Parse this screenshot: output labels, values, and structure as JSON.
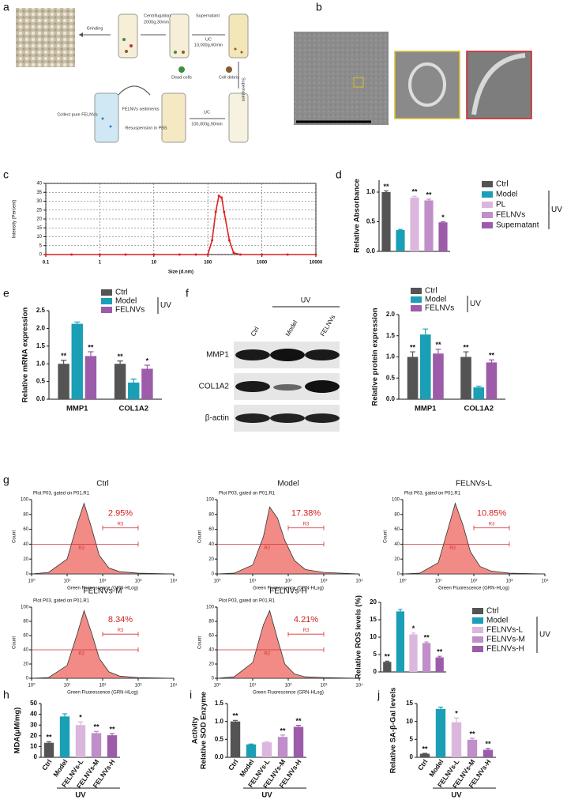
{
  "figure": {
    "letters": [
      "a",
      "b",
      "c",
      "d",
      "e",
      "f",
      "g",
      "h",
      "i",
      "j"
    ],
    "schematic": [
      "Grinding",
      "Centrifugation",
      "2000g,30min",
      "Supernatant",
      "UC",
      "10,000g,60min",
      "Dead cells",
      "Cell debris",
      "Supernatant",
      "UC",
      "100,000g,90min",
      "FELNVs sediments",
      "Resuspension in PBS",
      "Collect pure FELNVs"
    ],
    "blot": {
      "lanes": [
        "Ctrl",
        "Model",
        "FELNVs"
      ],
      "group_label": "UV",
      "rows": [
        "MMP1",
        "COL1A2",
        "β-actin"
      ]
    }
  },
  "chart_data": [
    {
      "type": "line",
      "xlabel": "Size (d.nm)",
      "ylabel": "Intensity (Percent)",
      "xlog": true,
      "grid": true,
      "x": [
        0.1,
        0.3,
        1,
        3,
        10,
        30,
        60,
        100,
        120,
        140,
        160,
        180,
        200,
        250,
        300,
        400,
        1000,
        3000,
        10000
      ],
      "series": [
        {
          "name": "Intensity",
          "color": "#e02020",
          "values": [
            0,
            0,
            0,
            0,
            0,
            0,
            0,
            0,
            8,
            24,
            33,
            32,
            24,
            8,
            1,
            0,
            0,
            0,
            0
          ]
        }
      ],
      "xlim": [
        0.1,
        10000
      ],
      "xticks": [
        0.1,
        1,
        10,
        100,
        1000,
        10000
      ],
      "ylim": [
        0,
        40
      ],
      "yticks": [
        0,
        5,
        10,
        15,
        20,
        25,
        30,
        35,
        40
      ]
    },
    {
      "type": "bar",
      "ylabel": "Relative Absorbance",
      "legend": true,
      "group_label": "UV",
      "categories": [
        "Ctrl",
        "Model",
        "PL",
        "FELNVs",
        "Supernatant"
      ],
      "values": [
        1.0,
        0.36,
        0.91,
        0.86,
        0.49
      ],
      "errors": [
        0.02,
        0.01,
        0.02,
        0.02,
        0.01
      ],
      "annotations": [
        "**",
        null,
        "**",
        "**",
        "*"
      ],
      "colors": [
        "#545454",
        "#1a9fb6",
        "#dcb7dd",
        "#c08ec9",
        "#9c5ca9"
      ],
      "ylim": [
        0,
        1.2
      ],
      "yticks": [
        {
          "value": 0,
          "label": "0.0"
        },
        {
          "value": 0.5,
          "label": "0.5"
        },
        {
          "value": 1,
          "label": "1.0"
        }
      ]
    },
    {
      "type": "grouped_bar",
      "ylabel": "Relative mRNA expression",
      "group_label": "UV",
      "categories": [
        "MMP1",
        "COL1A2"
      ],
      "series": [
        {
          "name": "Ctrl",
          "color": "#545454",
          "values": [
            1.0,
            1.0
          ],
          "errors": [
            0.1,
            0.08
          ],
          "annotations": [
            "**",
            "**"
          ]
        },
        {
          "name": "Model",
          "color": "#1a9fb6",
          "values": [
            2.13,
            0.47
          ],
          "errors": [
            0.05,
            0.1
          ],
          "annotations": [
            null,
            null
          ]
        },
        {
          "name": "FELNVs",
          "color": "#9c5ca9",
          "values": [
            1.22,
            0.86
          ],
          "errors": [
            0.12,
            0.1
          ],
          "annotations": [
            "**",
            "*"
          ]
        }
      ],
      "ylim": [
        0,
        2.5
      ],
      "yticks": [
        {
          "value": 0,
          "label": "0.0"
        },
        {
          "value": 0.5,
          "label": "0.5"
        },
        {
          "value": 1,
          "label": "1.0"
        },
        {
          "value": 1.5,
          "label": "1.5"
        },
        {
          "value": 2,
          "label": "2.0"
        },
        {
          "value": 2.5,
          "label": "2.5"
        }
      ]
    },
    {
      "type": "grouped_bar",
      "ylabel": "Relative protein expression",
      "group_label": "UV",
      "categories": [
        "MMP1",
        "COL1A2"
      ],
      "series": [
        {
          "name": "Ctrl",
          "color": "#545454",
          "values": [
            1.0,
            1.0
          ],
          "errors": [
            0.12,
            0.12
          ],
          "annotations": [
            "**",
            "**"
          ]
        },
        {
          "name": "Model",
          "color": "#1a9fb6",
          "values": [
            1.53,
            0.28
          ],
          "errors": [
            0.13,
            0.03
          ],
          "annotations": [
            null,
            null
          ]
        },
        {
          "name": "FELNVs",
          "color": "#9c5ca9",
          "values": [
            1.08,
            0.87
          ],
          "errors": [
            0.1,
            0.06
          ],
          "annotations": [
            "**",
            "**"
          ]
        }
      ],
      "ylim": [
        0,
        2
      ],
      "yticks": [
        {
          "value": 0,
          "label": "0.0"
        },
        {
          "value": 0.5,
          "label": "0.5"
        },
        {
          "value": 1,
          "label": "1.0"
        },
        {
          "value": 1.5,
          "label": "1.5"
        },
        {
          "value": 2,
          "label": "2.0"
        }
      ]
    },
    {
      "type": "area",
      "title": "Ctrl",
      "subtitle": "Plot P03, gated on P01.R1",
      "xlabel": "Green Fluorescence (GRN-HLog)",
      "ylabel": "Count",
      "annotation": "2.95%",
      "gate_labels": [
        "R2",
        "R3"
      ],
      "xlog": true,
      "color": "#f28b86",
      "x": [
        1,
        3,
        10,
        20,
        30,
        50,
        80,
        150,
        300,
        1000,
        10000
      ],
      "values": [
        0,
        2,
        20,
        70,
        95,
        60,
        25,
        8,
        3,
        1,
        0
      ],
      "xlim": [
        1,
        10000
      ],
      "xticks": [
        {
          "value": 1,
          "label": "10⁰"
        },
        {
          "value": 10,
          "label": "10¹"
        },
        {
          "value": 100,
          "label": "10²"
        },
        {
          "value": 1000,
          "label": "10³"
        },
        {
          "value": 10000,
          "label": "10⁴"
        }
      ],
      "ylim": [
        0,
        100
      ],
      "yticks": [
        0,
        20,
        40,
        60,
        80,
        100
      ]
    },
    {
      "type": "area",
      "title": "Model",
      "subtitle": "Plot P03, gated on P01.R1",
      "xlabel": "Green Fluorescence (GRN-HLog)",
      "ylabel": "Count",
      "annotation": "17.38%",
      "gate_labels": [
        "R2",
        "R3"
      ],
      "xlog": true,
      "color": "#f28b86",
      "x": [
        1,
        3,
        10,
        20,
        30,
        50,
        80,
        150,
        300,
        1000,
        10000
      ],
      "values": [
        0,
        1,
        12,
        50,
        90,
        75,
        45,
        18,
        6,
        2,
        0
      ],
      "xlim": [
        1,
        10000
      ],
      "xticks": [
        {
          "value": 1,
          "label": "10⁰"
        },
        {
          "value": 10,
          "label": "10¹"
        },
        {
          "value": 100,
          "label": "10²"
        },
        {
          "value": 1000,
          "label": "10³"
        },
        {
          "value": 10000,
          "label": "10⁴"
        }
      ],
      "ylim": [
        0,
        100
      ],
      "yticks": [
        0,
        20,
        40,
        60,
        80,
        100
      ]
    },
    {
      "type": "area",
      "title": "FELNVs-L",
      "subtitle": "Plot P03, gated on P01.R1",
      "xlabel": "Green Fluorescence (GRN-HLog)",
      "ylabel": "Count",
      "annotation": "10.85%",
      "gate_labels": [
        "R2",
        "R3"
      ],
      "xlog": true,
      "color": "#f28b86",
      "x": [
        1,
        3,
        10,
        20,
        30,
        50,
        80,
        150,
        300,
        1000,
        10000
      ],
      "values": [
        0,
        1,
        15,
        65,
        95,
        65,
        30,
        10,
        4,
        1,
        0
      ],
      "xlim": [
        1,
        10000
      ],
      "xticks": [
        {
          "value": 1,
          "label": "10⁰"
        },
        {
          "value": 10,
          "label": "10¹"
        },
        {
          "value": 100,
          "label": "10²"
        },
        {
          "value": 1000,
          "label": "10³"
        },
        {
          "value": 10000,
          "label": "10⁴"
        }
      ],
      "ylim": [
        0,
        100
      ],
      "yticks": [
        0,
        20,
        40,
        60,
        80,
        100
      ]
    },
    {
      "type": "area",
      "title": "FELNVs-M",
      "subtitle": "Plot P03, gated on P01.R1",
      "xlabel": "Green Fluorescence (GRN-HLog)",
      "ylabel": "Count",
      "annotation": "8.34%",
      "gate_labels": [
        "R2",
        "R3"
      ],
      "xlog": true,
      "color": "#f28b86",
      "x": [
        1,
        3,
        10,
        20,
        30,
        50,
        80,
        150,
        300,
        1000,
        10000
      ],
      "values": [
        0,
        1,
        18,
        65,
        95,
        62,
        28,
        9,
        3,
        1,
        0
      ],
      "xlim": [
        1,
        10000
      ],
      "xticks": [
        {
          "value": 1,
          "label": "10⁰"
        },
        {
          "value": 10,
          "label": "10¹"
        },
        {
          "value": 100,
          "label": "10²"
        },
        {
          "value": 1000,
          "label": "10³"
        },
        {
          "value": 10000,
          "label": "10⁴"
        }
      ],
      "ylim": [
        0,
        100
      ],
      "yticks": [
        0,
        20,
        40,
        60,
        80,
        100
      ]
    },
    {
      "type": "area",
      "title": "FELNVs-H",
      "subtitle": "Plot P03, gated on P01.R1",
      "xlabel": "Green Fluorescence (GRN-HLog)",
      "ylabel": "Count",
      "annotation": "4.21%",
      "gate_labels": [
        "R2",
        "R3"
      ],
      "xlog": true,
      "color": "#f28b86",
      "x": [
        1,
        3,
        10,
        20,
        30,
        50,
        80,
        150,
        300,
        1000,
        10000
      ],
      "values": [
        0,
        2,
        22,
        75,
        95,
        55,
        20,
        6,
        2,
        1,
        0
      ],
      "xlim": [
        1,
        10000
      ],
      "xticks": [
        {
          "value": 1,
          "label": "10⁰"
        },
        {
          "value": 10,
          "label": "10¹"
        },
        {
          "value": 100,
          "label": "10²"
        },
        {
          "value": 1000,
          "label": "10³"
        },
        {
          "value": 10000,
          "label": "10⁴"
        }
      ],
      "ylim": [
        0,
        100
      ],
      "yticks": [
        0,
        20,
        40,
        60,
        80,
        100
      ]
    },
    {
      "type": "bar",
      "ylabel": "Relative ROS levels (%)",
      "legend": true,
      "group_label": "UV",
      "categories": [
        "Ctrl",
        "Model",
        "FELNVs-L",
        "FELNVs-M",
        "FELNVs-H"
      ],
      "values": [
        2.9,
        17.4,
        10.8,
        8.3,
        4.2
      ],
      "errors": [
        0.2,
        0.6,
        0.4,
        0.3,
        0.3
      ],
      "annotations": [
        "**",
        null,
        "*",
        "**",
        "**"
      ],
      "colors": [
        "#545454",
        "#1a9fb6",
        "#dcb7dd",
        "#c08ec9",
        "#9c5ca9"
      ],
      "ylim": [
        0,
        20
      ],
      "yticks": [
        0,
        5,
        10,
        15,
        20
      ]
    },
    {
      "type": "bar",
      "ylabel": "MDA(μM/mg)",
      "legend": false,
      "group_label": "UV",
      "categories": [
        "Ctrl",
        "Model",
        "FELNVs-L",
        "FELNVs-M",
        "FELNVs-H"
      ],
      "values": [
        13.5,
        38,
        30,
        22.5,
        20.5
      ],
      "errors": [
        1,
        2.5,
        3,
        1.5,
        1.5
      ],
      "annotations": [
        "**",
        null,
        "*",
        "**",
        "**"
      ],
      "colors": [
        "#545454",
        "#1a9fb6",
        "#dcb7dd",
        "#c08ec9",
        "#9c5ca9"
      ],
      "ylim": [
        0,
        50
      ],
      "yticks": [
        0,
        10,
        20,
        30,
        40,
        50
      ]
    },
    {
      "type": "bar",
      "ylabel": [
        "Relative SOD Enzyme",
        "Activity"
      ],
      "legend": false,
      "group_label": "UV",
      "categories": [
        "Ctrl",
        "Model",
        "FELNVs-L",
        "FELNVs-M",
        "FELNVs-H"
      ],
      "values": [
        1.0,
        0.36,
        0.42,
        0.57,
        0.85
      ],
      "errors": [
        0.03,
        0.01,
        0.02,
        0.05,
        0.04
      ],
      "annotations": [
        "**",
        null,
        null,
        "**",
        "**"
      ],
      "colors": [
        "#545454",
        "#1a9fb6",
        "#dcb7dd",
        "#c08ec9",
        "#9c5ca9"
      ],
      "ylim": [
        0,
        1.5
      ],
      "yticks": [
        {
          "value": 0,
          "label": "0.0"
        },
        {
          "value": 0.5,
          "label": "0.5"
        },
        {
          "value": 1,
          "label": "1.0"
        },
        {
          "value": 1.5,
          "label": "1.5"
        }
      ]
    },
    {
      "type": "bar",
      "ylabel": "Relative SA-β-Gal levels",
      "legend": false,
      "group_label": "UV",
      "categories": [
        "Ctrl",
        "Model",
        "FELNVs-L",
        "FELNVs-M",
        "FELNVs-H"
      ],
      "values": [
        1.0,
        13.5,
        9.8,
        4.9,
        2.1
      ],
      "errors": [
        0.1,
        0.5,
        1.2,
        0.4,
        0.4
      ],
      "annotations": [
        "**",
        null,
        "*",
        "**",
        "**"
      ],
      "colors": [
        "#545454",
        "#1a9fb6",
        "#dcb7dd",
        "#c08ec9",
        "#9c5ca9"
      ],
      "ylim": [
        0,
        15
      ],
      "yticks": [
        0,
        5,
        10,
        15
      ]
    }
  ]
}
